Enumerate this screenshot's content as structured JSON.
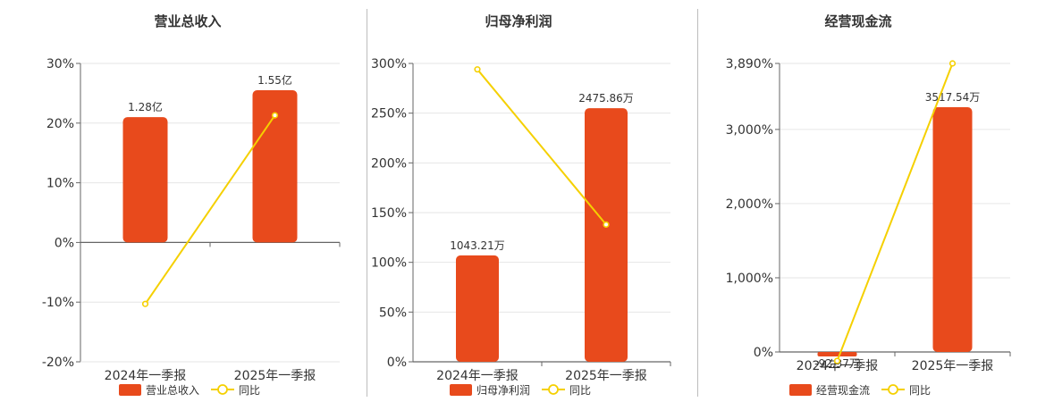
{
  "colors": {
    "bar": "#e84a1c",
    "line": "#f5d000",
    "grid": "#e6e6e6",
    "axis": "#666666",
    "text": "#333333"
  },
  "chart_data": [
    {
      "type": "bar",
      "title": "营业总收入",
      "categories": [
        "2024年一季报",
        "2025年一季报"
      ],
      "y_ticks": [
        "30%",
        "20%",
        "10%",
        "0%",
        "-10%",
        "-20%"
      ],
      "ylim": [
        -20,
        30
      ],
      "series": [
        {
          "name": "营业总收入",
          "kind": "bar",
          "values": [
            21,
            25.5
          ],
          "labels": [
            "1.28亿",
            "1.55亿"
          ]
        },
        {
          "name": "同比",
          "kind": "line",
          "values": [
            -10.3,
            21.3
          ]
        }
      ],
      "legend": [
        "营业总收入",
        "同比"
      ],
      "grid": true
    },
    {
      "type": "bar",
      "title": "归母净利润",
      "categories": [
        "2024年一季报",
        "2025年一季报"
      ],
      "y_ticks": [
        "300%",
        "250%",
        "200%",
        "150%",
        "100%",
        "50%",
        "0%"
      ],
      "ylim": [
        0,
        300
      ],
      "series": [
        {
          "name": "归母净利润",
          "kind": "bar",
          "values": [
            107,
            255
          ],
          "labels": [
            "1043.21万",
            "2475.86万"
          ]
        },
        {
          "name": "同比",
          "kind": "line",
          "values": [
            294,
            138
          ]
        }
      ],
      "legend": [
        "归母净利润",
        "同比"
      ],
      "grid": true
    },
    {
      "type": "bar",
      "title": "经营现金流",
      "categories": [
        "2024年一季报",
        "2025年一季报"
      ],
      "y_ticks": [
        "3,890%",
        "3,000%",
        "2,000%",
        "1,000%",
        "0%"
      ],
      "ylim": [
        0,
        3890
      ],
      "series": [
        {
          "name": "经营现金流",
          "kind": "bar",
          "values": [
            -60,
            3300
          ],
          "labels": [
            "-92.37万",
            "3517.54万"
          ]
        },
        {
          "name": "同比",
          "kind": "line",
          "values": [
            -120,
            3890
          ]
        }
      ],
      "legend": [
        "经营现金流",
        "同比"
      ],
      "grid": true
    }
  ]
}
